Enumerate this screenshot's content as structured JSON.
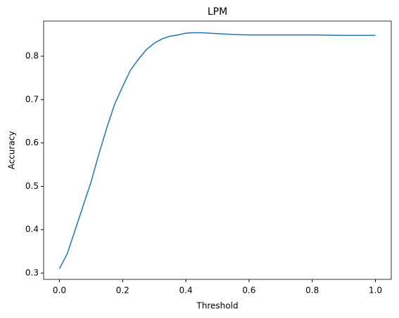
{
  "chart_data": {
    "type": "line",
    "title": "LPM",
    "x_label": "Threshold",
    "y_label": "Accuracy",
    "x": [
      0.0,
      0.025,
      0.05,
      0.075,
      0.1,
      0.125,
      0.15,
      0.175,
      0.2,
      0.225,
      0.25,
      0.275,
      0.3,
      0.325,
      0.35,
      0.375,
      0.4,
      0.425,
      0.45,
      0.5,
      0.55,
      0.6,
      0.7,
      0.8,
      0.9,
      1.0
    ],
    "values": [
      0.31,
      0.345,
      0.4,
      0.455,
      0.51,
      0.575,
      0.635,
      0.69,
      0.73,
      0.768,
      0.793,
      0.815,
      0.83,
      0.84,
      0.846,
      0.849,
      0.853,
      0.854,
      0.854,
      0.852,
      0.85,
      0.849,
      0.849,
      0.849,
      0.848,
      0.848
    ],
    "color": "#1f77b4",
    "xlim": [
      -0.05,
      1.05
    ],
    "xticks": [
      {
        "value": 0,
        "label": "0.0"
      },
      0.2,
      0.4,
      0.6,
      0.8,
      {
        "value": 1,
        "label": "1.0"
      }
    ],
    "ylim": [
      0.2855,
      0.881
    ],
    "yticks": [
      0.3,
      0.4,
      0.5,
      0.6,
      0.7,
      0.8
    ]
  }
}
